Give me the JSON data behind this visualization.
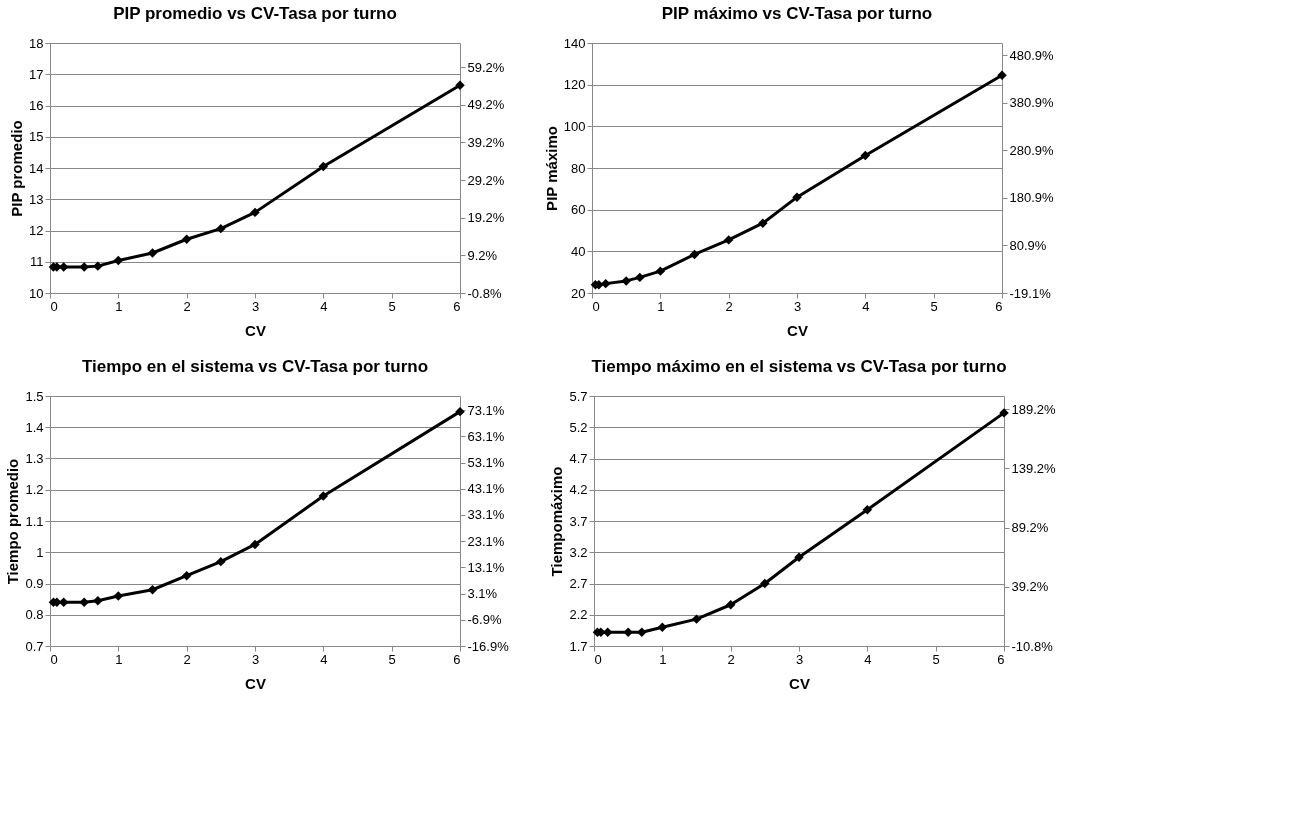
{
  "chart_data": [
    {
      "type": "line",
      "title": "PIP promedio vs CV-Tasa por turno",
      "xlabel": "CV",
      "ylabel": "PIP promedio",
      "x": [
        0.05,
        0.1,
        0.2,
        0.5,
        0.7,
        1,
        1.5,
        2,
        2.5,
        3,
        4,
        6
      ],
      "xlim": [
        0,
        6
      ],
      "xticks": [
        0,
        1,
        2,
        3,
        4,
        5,
        6
      ],
      "ylim": [
        10,
        18
      ],
      "yticks": [
        10,
        11,
        12,
        13,
        14,
        15,
        16,
        17,
        18
      ],
      "y2lim": [
        -0.8,
        65.6
      ],
      "y2ticks": [
        {
          "value": -0.8,
          "label": "-0.8%"
        },
        {
          "value": 9.2,
          "label": "9.2%"
        },
        {
          "value": 19.2,
          "label": "19.2%"
        },
        {
          "value": 29.2,
          "label": "29.2%"
        },
        {
          "value": 39.2,
          "label": "39.2%"
        },
        {
          "value": 49.2,
          "label": "49.2%"
        },
        {
          "value": 59.2,
          "label": "59.2%"
        }
      ],
      "grid": "y",
      "marker": "diamond",
      "line_style": "solid",
      "series": [
        {
          "color": "#000000",
          "values": [
            10.83,
            10.83,
            10.83,
            10.83,
            10.86,
            11.04,
            11.28,
            11.72,
            12.06,
            12.58,
            14.05,
            16.65
          ]
        }
      ]
    },
    {
      "type": "line",
      "title": "PIP máximo vs CV-Tasa por turno",
      "xlabel": "CV",
      "ylabel": "PIP máximo",
      "x": [
        0.05,
        0.1,
        0.2,
        0.5,
        0.7,
        1,
        1.5,
        2,
        2.5,
        3,
        4,
        6
      ],
      "xlim": [
        0,
        6
      ],
      "xticks": [
        0,
        1,
        2,
        3,
        4,
        5,
        6
      ],
      "ylim": [
        20,
        140
      ],
      "yticks": [
        20,
        40,
        60,
        80,
        100,
        120,
        140
      ],
      "y2lim": [
        -19.1,
        507
      ],
      "y2ticks": [
        {
          "value": -19.1,
          "label": "-19.1%"
        },
        {
          "value": 80.9,
          "label": "80.9%"
        },
        {
          "value": 180.9,
          "label": "180.9%"
        },
        {
          "value": 280.9,
          "label": "280.9%"
        },
        {
          "value": 380.9,
          "label": "380.9%"
        },
        {
          "value": 480.9,
          "label": "480.9%"
        }
      ],
      "grid": "y",
      "marker": "diamond",
      "line_style": "solid",
      "series": [
        {
          "color": "#000000",
          "values": [
            24,
            24,
            24.5,
            25.8,
            27.5,
            30.5,
            38.5,
            45.5,
            53.5,
            66,
            86,
            124.5
          ]
        }
      ]
    },
    {
      "type": "line",
      "title": "Tiempo en el sistema vs CV-Tasa por turno",
      "xlabel": "CV",
      "ylabel": "Tiempo promedio",
      "x": [
        0.05,
        0.1,
        0.2,
        0.5,
        0.7,
        1,
        1.5,
        2,
        2.5,
        3,
        4,
        6
      ],
      "xlim": [
        0,
        6
      ],
      "xticks": [
        0,
        1,
        2,
        3,
        4,
        5,
        6
      ],
      "ylim": [
        0.7,
        1.5
      ],
      "yticks": [
        0.7,
        0.8,
        0.9,
        1,
        1.1,
        1.2,
        1.3,
        1.4,
        1.5
      ],
      "y2lim": [
        -16.9,
        78.5
      ],
      "y2ticks": [
        {
          "value": -16.9,
          "label": "-16.9%"
        },
        {
          "value": -6.9,
          "label": "-6.9%"
        },
        {
          "value": 3.1,
          "label": "3.1%"
        },
        {
          "value": 13.1,
          "label": "13.1%"
        },
        {
          "value": 23.1,
          "label": "23.1%"
        },
        {
          "value": 33.1,
          "label": "33.1%"
        },
        {
          "value": 43.1,
          "label": "43.1%"
        },
        {
          "value": 53.1,
          "label": "53.1%"
        },
        {
          "value": 63.1,
          "label": "63.1%"
        },
        {
          "value": 73.1,
          "label": "73.1%"
        }
      ],
      "grid": "y",
      "marker": "diamond",
      "line_style": "solid",
      "series": [
        {
          "color": "#000000",
          "values": [
            0.84,
            0.84,
            0.84,
            0.84,
            0.845,
            0.86,
            0.88,
            0.925,
            0.97,
            1.025,
            1.18,
            1.45
          ]
        }
      ]
    },
    {
      "type": "line",
      "title": "Tiempo máximo en el sistema vs CV-Tasa por turno",
      "xlabel": "CV",
      "ylabel": "Tiempomáximo",
      "x": [
        0.05,
        0.1,
        0.2,
        0.5,
        0.7,
        1,
        1.5,
        2,
        2.5,
        3,
        4,
        6
      ],
      "xlim": [
        0,
        6
      ],
      "xticks": [
        0,
        1,
        2,
        3,
        4,
        5,
        6
      ],
      "ylim": [
        1.7,
        5.7
      ],
      "yticks": [
        1.7,
        2.2,
        2.7,
        3.2,
        3.7,
        4.2,
        4.7,
        5.2,
        5.7
      ],
      "y2lim": [
        -10.8,
        200.4
      ],
      "y2ticks": [
        {
          "value": -10.8,
          "label": "-10.8%"
        },
        {
          "value": 39.2,
          "label": "39.2%"
        },
        {
          "value": 89.2,
          "label": "89.2%"
        },
        {
          "value": 139.2,
          "label": "139.2%"
        },
        {
          "value": 189.2,
          "label": "189.2%"
        }
      ],
      "grid": "y",
      "marker": "diamond",
      "line_style": "solid",
      "series": [
        {
          "color": "#000000",
          "values": [
            1.92,
            1.92,
            1.92,
            1.92,
            1.92,
            2.0,
            2.13,
            2.36,
            2.7,
            3.12,
            3.88,
            5.43
          ]
        }
      ]
    }
  ]
}
